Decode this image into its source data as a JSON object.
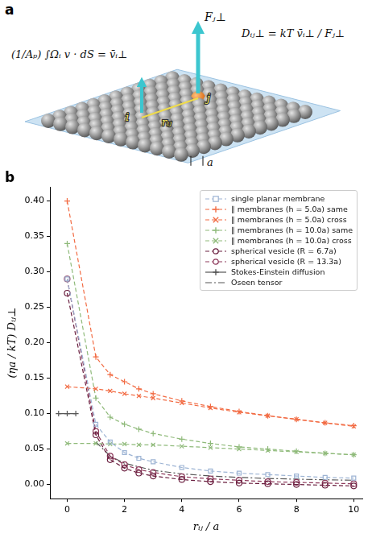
{
  "panel_a": {
    "letter": "a",
    "formula_average": "(1/Aₚ) ∫Ωᵢ v · dS = v̄ᵢ⊥",
    "force_label": "Fⱼ⊥",
    "formula_diffusion": "Dᵢⱼ⊥ = kT v̄ᵢ⊥ / Fⱼ⊥",
    "bead_i": "i",
    "bead_j": "j",
    "distance": "rᵢⱼ",
    "spacing": "a"
  },
  "chart_data": {
    "type": "line",
    "panel_label": "b",
    "x_label": "rᵢⱼ / a",
    "y_label": "(ηa / kT) Dᵢⱼ⊥",
    "xlim": [
      -0.6,
      10.3
    ],
    "xticks": [
      0,
      2,
      4,
      6,
      8,
      10
    ],
    "ylim": [
      -0.02,
      0.42
    ],
    "yticks": [
      {
        "value": 0,
        "label": "0.00"
      },
      {
        "value": 0.05,
        "label": "0.05"
      },
      {
        "value": 0.1,
        "label": "0.10"
      },
      {
        "value": 0.15,
        "label": "0.15"
      },
      {
        "value": 0.2,
        "label": "0.20"
      },
      {
        "value": 0.25,
        "label": "0.25"
      },
      {
        "value": 0.3,
        "label": "0.30"
      },
      {
        "value": 0.35,
        "label": "0.35"
      },
      {
        "value": 0.4,
        "label": "0.40"
      }
    ],
    "grid": false,
    "legend": "upper right",
    "series": [
      {
        "name": "single planar membrane",
        "color": "#9db4d4",
        "marker": "square",
        "line_style": "dashed",
        "x": [
          0,
          1,
          1.5,
          2,
          2.5,
          3,
          4,
          5,
          6,
          7,
          8,
          9,
          10
        ],
        "values": [
          0.29,
          0.085,
          0.06,
          0.045,
          0.037,
          0.032,
          0.024,
          0.019,
          0.016,
          0.014,
          0.012,
          0.01,
          0.009
        ]
      },
      {
        "name": "∥ membranes (h = 5.0a) same",
        "color": "#f26b43",
        "marker": "plus",
        "line_style": "dashed",
        "x": [
          0,
          1,
          1.5,
          2,
          2.5,
          3,
          4,
          5,
          6,
          7,
          8,
          9,
          10
        ],
        "values": [
          0.4,
          0.18,
          0.155,
          0.145,
          0.135,
          0.128,
          0.118,
          0.11,
          0.103,
          0.097,
          0.092,
          0.087,
          0.083
        ]
      },
      {
        "name": "∥ membranes (h = 5.0a) cross",
        "color": "#f26b43",
        "marker": "x",
        "line_style": "dashed",
        "x": [
          0,
          1,
          1.5,
          2,
          2.5,
          3,
          4,
          5,
          6,
          7,
          8,
          9,
          10
        ],
        "values": [
          0.138,
          0.135,
          0.132,
          0.128,
          0.125,
          0.122,
          0.115,
          0.108,
          0.102,
          0.097,
          0.092,
          0.087,
          0.082
        ]
      },
      {
        "name": "∥ membranes (h = 10.0a) same",
        "color": "#8fba7a",
        "marker": "plus",
        "line_style": "dashed",
        "x": [
          0,
          1,
          1.5,
          2,
          2.5,
          3,
          4,
          5,
          6,
          7,
          8,
          9,
          10
        ],
        "values": [
          0.34,
          0.122,
          0.095,
          0.085,
          0.078,
          0.072,
          0.064,
          0.058,
          0.053,
          0.05,
          0.047,
          0.044,
          0.042
        ]
      },
      {
        "name": "∥ membranes (h = 10.0a) cross",
        "color": "#8fba7a",
        "marker": "x",
        "line_style": "dashed",
        "x": [
          0,
          1,
          1.5,
          2,
          2.5,
          3,
          4,
          5,
          6,
          7,
          8,
          9,
          10
        ],
        "values": [
          0.058,
          0.058,
          0.057,
          0.057,
          0.056,
          0.056,
          0.054,
          0.052,
          0.05,
          0.048,
          0.046,
          0.044,
          0.042
        ]
      },
      {
        "name": "spherical vesicle (R = 6.7a)",
        "color": "#6b2040",
        "marker": "circle",
        "line_style": "dashed",
        "x": [
          0,
          1,
          1.5,
          2,
          2.5,
          3,
          4,
          5,
          6,
          7,
          8,
          9,
          10
        ],
        "values": [
          0.27,
          0.07,
          0.035,
          0.023,
          0.016,
          0.012,
          0.007,
          0.004,
          0.002,
          0.001,
          0.0,
          -0.001,
          -0.002
        ]
      },
      {
        "name": "spherical vesicle (R = 13.3a)",
        "color": "#8e3a5c",
        "marker": "circle",
        "line_style": "dashed",
        "x": [
          0,
          1,
          1.5,
          2,
          2.5,
          3,
          4,
          5,
          6,
          7,
          8,
          9,
          10
        ],
        "values": [
          0.29,
          0.075,
          0.04,
          0.028,
          0.021,
          0.017,
          0.011,
          0.008,
          0.006,
          0.004,
          0.003,
          0.002,
          0.001
        ]
      },
      {
        "name": "Stokes-Einstein diffusion",
        "color": "#555555",
        "marker": "plus",
        "line_style": "solid",
        "x": [
          -0.3,
          0,
          0.3
        ],
        "values": [
          0.1,
          0.1,
          0.1
        ]
      },
      {
        "name": "Oseen tensor",
        "color": "#555555",
        "marker": "none",
        "line_style": "dashdot",
        "x": [
          1,
          1.5,
          2,
          3,
          4,
          5,
          6,
          7,
          8,
          9,
          10
        ],
        "values": [
          0.06,
          0.04,
          0.03,
          0.02,
          0.015,
          0.012,
          0.01,
          0.0085,
          0.0075,
          0.0067,
          0.006
        ]
      }
    ]
  }
}
